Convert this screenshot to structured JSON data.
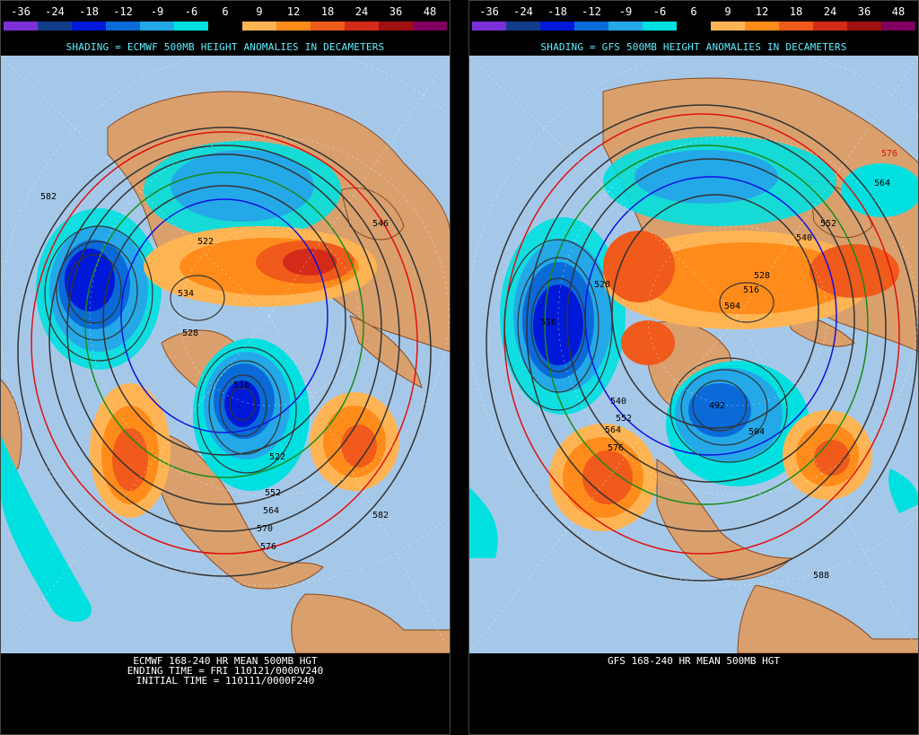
{
  "scale": {
    "labels": [
      "-36",
      "-24",
      "-18",
      "-12",
      "-9",
      "-6",
      "6",
      "9",
      "12",
      "18",
      "24",
      "36",
      "48"
    ],
    "colors": [
      "#7b2fd6",
      "#123d8a",
      "#0019d8",
      "#0a6ad8",
      "#24a8e8",
      "#00e0e0",
      "#000000",
      "#ffb454",
      "#ff8c1a",
      "#f05a1a",
      "#d42a1a",
      "#a01010",
      "#800060"
    ]
  },
  "left": {
    "shading_title": "SHADING = ECMWF 500MB HEIGHT ANOMALIES IN DECAMETERS",
    "caption_lines": [
      "ECMWF 168-240 HR MEAN 500MB HGT",
      "ENDING TIME = FRI 110121/0000V240",
      "INITIAL TIME = 110111/0000F240"
    ],
    "contour_labels": [
      "582",
      "546",
      "522",
      "534",
      "528",
      "516",
      "522",
      "552",
      "564",
      "570",
      "576",
      "582"
    ]
  },
  "right": {
    "shading_title": "SHADING = GFS 500MB HEIGHT ANOMALIES IN DECAMETERS",
    "caption_lines": [
      "GFS 168-240 HR MEAN 500MB HGT"
    ],
    "contour_labels": [
      "576",
      "564",
      "552",
      "540",
      "528",
      "516",
      "504",
      "528",
      "516",
      "540",
      "552",
      "564",
      "576",
      "492",
      "504",
      "588"
    ]
  },
  "map_colors": {
    "ocean": "#a6c8e8",
    "land": "#d9a06e",
    "border": "#8a4a20"
  }
}
